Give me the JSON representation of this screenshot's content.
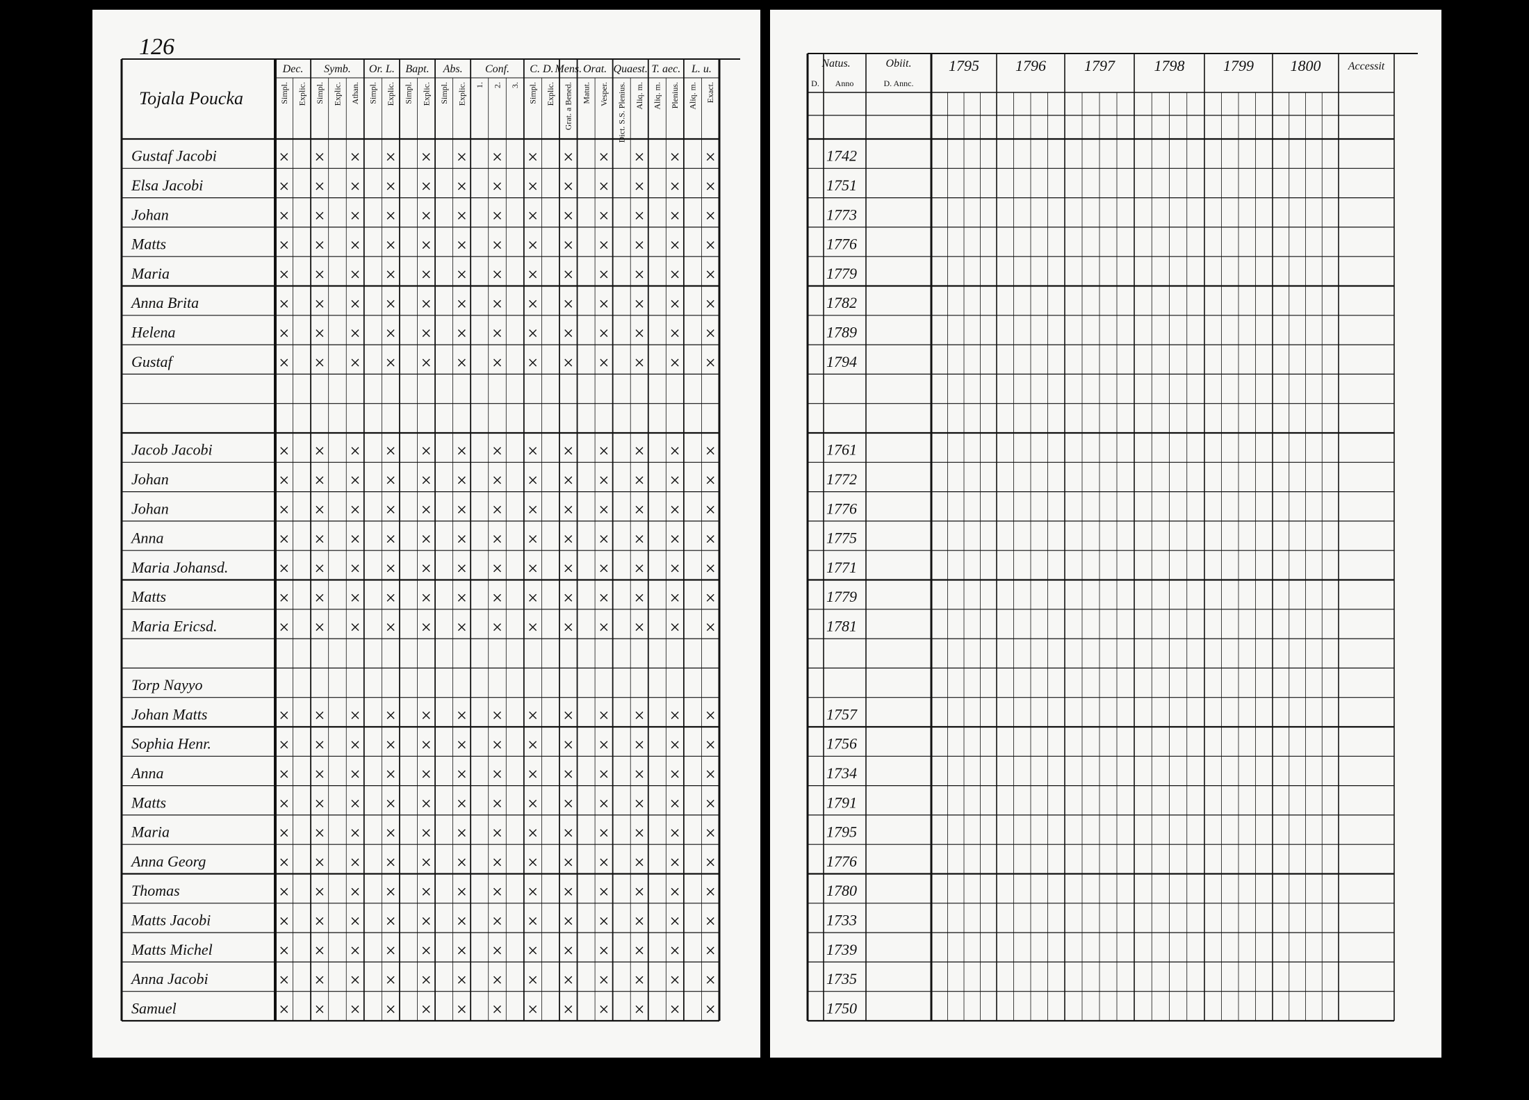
{
  "header": {
    "page_number": "126",
    "farm": "Tojala Poucka",
    "left_columns": [
      {
        "label": "Dec.",
        "sub": [
          "Simpl.",
          "Explic."
        ]
      },
      {
        "label": "Symb.",
        "sub": [
          "Simpl.",
          "Explic.",
          "Athan."
        ]
      },
      {
        "label": "Or. L.",
        "sub": [
          "Simpl.",
          "Explic."
        ]
      },
      {
        "label": "Bapt.",
        "sub": [
          "Simpl.",
          "Explic."
        ]
      },
      {
        "label": "Abs.",
        "sub": [
          "Simpl.",
          "Explic."
        ]
      },
      {
        "label": "Conf.",
        "sub": [
          "1.",
          "2.",
          "3."
        ]
      },
      {
        "label": "C. D.",
        "sub": [
          "Simpl.",
          "Explic."
        ]
      },
      {
        "label": "Mens.",
        "sub": [
          "Grat. a Bened."
        ]
      },
      {
        "label": "Orat.",
        "sub": [
          "Matut.",
          "Vesper."
        ]
      },
      {
        "label": "Quaest.",
        "sub": [
          "Dict. S.S. Plenius.",
          "Aliq. m."
        ]
      },
      {
        "label": "T. aec.",
        "sub": [
          "Aliq. m.",
          "Plenius."
        ]
      },
      {
        "label": "L. u.",
        "sub": [
          "Aliq. m.",
          "Exact."
        ]
      }
    ],
    "right_columns": {
      "natus": "Natus.",
      "day": "D.",
      "anno": "Anno",
      "obiit": "Obiit.",
      "obiit_sub": "D. Annc.",
      "years": [
        "1795",
        "1796",
        "1797",
        "1798",
        "1799",
        "1800"
      ],
      "accessit": "Accessit"
    }
  },
  "rows": [
    {
      "name": "Gustaf Jacobi",
      "year": "1742"
    },
    {
      "name": "Elsa Jacobi",
      "year": "1751"
    },
    {
      "name": "Johan",
      "year": "1773"
    },
    {
      "name": "Matts",
      "year": "1776"
    },
    {
      "name": "Maria",
      "year": "1779"
    },
    {
      "name": "Anna Brita",
      "year": "1782"
    },
    {
      "name": "Helena",
      "year": "1789"
    },
    {
      "name": "Gustaf",
      "year": "1794"
    },
    {},
    {},
    {
      "name": "Jacob Jacobi",
      "year": "1761"
    },
    {
      "name": "Johan",
      "year": "1772"
    },
    {
      "name": "Johan",
      "year": "1776"
    },
    {
      "name": "Anna",
      "year": "1775"
    },
    {
      "name": "Maria Johansd.",
      "year": "1771"
    },
    {
      "name": "Matts",
      "year": "1779"
    },
    {
      "name": "Maria Ericsd.",
      "year": "1781"
    },
    {},
    {
      "name": "Torp Nayyo"
    },
    {
      "name": "Johan Matts",
      "year": "1757"
    },
    {
      "name": "Sophia Henr.",
      "year": "1756"
    },
    {
      "name": "Anna",
      "year": "1734"
    },
    {
      "name": "Matts",
      "year": "1791"
    },
    {
      "name": "Maria",
      "year": "1795"
    },
    {
      "name": "Anna Georg",
      "year": "1776"
    },
    {
      "name": "Thomas",
      "year": "1780"
    },
    {
      "name": "Matts Jacobi",
      "year": "1733"
    },
    {
      "name": "Matts Michel",
      "year": "1739"
    },
    {
      "name": "Anna Jacobi",
      "year": "1735"
    },
    {
      "name": "Samuel",
      "year": "1750"
    }
  ]
}
